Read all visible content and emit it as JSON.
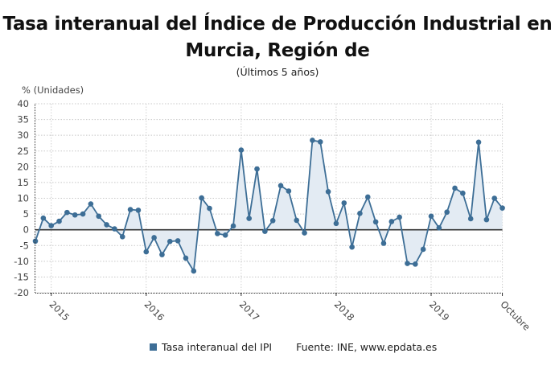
{
  "chart_data": {
    "type": "area",
    "title": "Tasa interanual del Índice de Producción Industrial en Murcia, Región de",
    "title_lines": [
      "Tasa interanual del Índice de Producción Industrial en",
      "Murcia, Región de"
    ],
    "subtitle": "(Últimos 5 años)",
    "ylabel": "% (Unidades)",
    "xlabel": "",
    "ylim": [
      -20,
      40
    ],
    "yticks": [
      40,
      35,
      30,
      25,
      20,
      15,
      10,
      5,
      0,
      -5,
      -10,
      -15,
      -20
    ],
    "xtick_labels": [
      "2015",
      "2016",
      "2017",
      "2018",
      "2019",
      "Octubre"
    ],
    "grid": true,
    "legend_position": "bottom",
    "x": [
      "Nov 2014",
      "Dic 2014",
      "Ene 2015",
      "Feb 2015",
      "Mar 2015",
      "Abr 2015",
      "May 2015",
      "Jun 2015",
      "Jul 2015",
      "Ago 2015",
      "Sep 2015",
      "Oct 2015",
      "Nov 2015",
      "Dic 2015",
      "Ene 2016",
      "Feb 2016",
      "Mar 2016",
      "Abr 2016",
      "May 2016",
      "Jun 2016",
      "Jul 2016",
      "Ago 2016",
      "Sep 2016",
      "Oct 2016",
      "Nov 2016",
      "Dic 2016",
      "Ene 2017",
      "Feb 2017",
      "Mar 2017",
      "Abr 2017",
      "May 2017",
      "Jun 2017",
      "Jul 2017",
      "Ago 2017",
      "Sep 2017",
      "Oct 2017",
      "Nov 2017",
      "Dic 2017",
      "Ene 2018",
      "Feb 2018",
      "Mar 2018",
      "Abr 2018",
      "May 2018",
      "Jun 2018",
      "Jul 2018",
      "Ago 2018",
      "Sep 2018",
      "Oct 2018",
      "Nov 2018",
      "Dic 2018",
      "Ene 2019",
      "Feb 2019",
      "Mar 2019",
      "Abr 2019",
      "May 2019",
      "Jun 2019",
      "Jul 2019",
      "Ago 2019",
      "Sep 2019",
      "Oct 2019"
    ],
    "series": [
      {
        "name": "Tasa interanual del IPI",
        "color": "#3d6e96",
        "fill": "#e3ebf3",
        "values": [
          -3.6,
          3.7,
          1.3,
          2.7,
          5.5,
          4.7,
          5.0,
          8.2,
          4.3,
          1.6,
          0.3,
          -2.2,
          6.4,
          6.2,
          -7.0,
          -2.5,
          -7.9,
          -3.7,
          -3.5,
          -9.0,
          -13.1,
          10.1,
          6.8,
          -1.2,
          -1.7,
          1.2,
          25.3,
          3.6,
          19.3,
          -0.5,
          2.9,
          14.0,
          12.3,
          3.0,
          -1.0,
          28.4,
          27.9,
          12.1,
          2.0,
          8.5,
          -5.5,
          5.2,
          10.4,
          2.5,
          -4.3,
          2.6,
          4.0,
          -10.7,
          -10.9,
          -6.2,
          4.3,
          0.6,
          5.6,
          13.2,
          11.6,
          3.5,
          27.8,
          3.2,
          10.0,
          6.9
        ]
      }
    ]
  },
  "legend": {
    "series_label": "Tasa interanual del IPI",
    "source": "Fuente: INE, www.epdata.es"
  }
}
